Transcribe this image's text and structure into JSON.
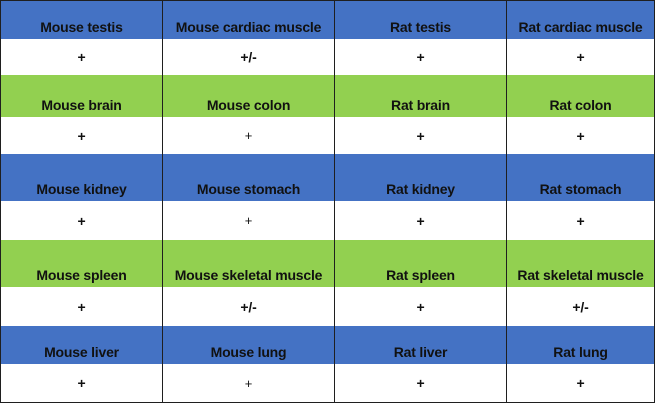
{
  "colors": {
    "blue_band": "#4472C4",
    "green_band": "#92D050",
    "white_band": "#FFFFFF",
    "grid_line": "#1F1F1F"
  },
  "rows": [
    {
      "header_color": "blue",
      "headers": [
        "Mouse testis",
        "Mouse cardiac muscle",
        "Rat testis",
        "Rat cardiac muscle"
      ],
      "values": [
        "+",
        "+/-",
        "+",
        "+"
      ]
    },
    {
      "header_color": "green",
      "headers": [
        "Mouse brain",
        "Mouse colon",
        "Rat brain",
        "Rat colon"
      ],
      "values": [
        "+",
        "+",
        "+",
        "+"
      ]
    },
    {
      "header_color": "blue",
      "headers": [
        "Mouse kidney",
        "Mouse stomach",
        "Rat kidney",
        "Rat stomach"
      ],
      "values": [
        "+",
        "+",
        "+",
        "+"
      ]
    },
    {
      "header_color": "green",
      "headers": [
        "Mouse spleen",
        "Mouse skeletal muscle",
        "Rat spleen",
        "Rat skeletal muscle"
      ],
      "values": [
        "+",
        "+/-",
        "+",
        "+/-"
      ]
    },
    {
      "header_color": "blue",
      "headers": [
        "Mouse liver",
        "Mouse lung",
        "Rat liver",
        "Rat lung"
      ],
      "values": [
        "+",
        "+",
        "+",
        "+"
      ]
    }
  ]
}
